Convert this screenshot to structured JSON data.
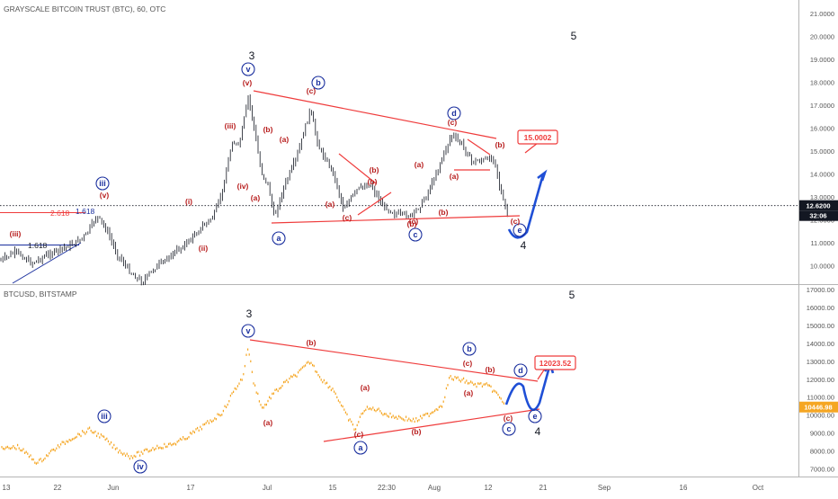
{
  "colors": {
    "candle": "#131722",
    "line2": "#f5a623",
    "trend": "#ef3b3b",
    "wave_red": "#b71c1c",
    "wave_blue": "#1a2f9e",
    "projection": "#1f4fd6",
    "axis_text": "#555555",
    "grid": "#c7c7c7",
    "price_tag": "#131722",
    "price_tag2": "#f5a623"
  },
  "chart_data": [
    {
      "type": "candlestick",
      "title": "GRAYSCALE BITCOIN TRUST (BTC), 60, OTC",
      "axis_labels": [
        "21.0000",
        "20.0000",
        "19.0000",
        "18.0000",
        "17.0000",
        "16.0000",
        "15.0000",
        "14.0000",
        "13.0000",
        "12.0000",
        "11.0000",
        "10.0000"
      ],
      "y_ticks": [
        21,
        20,
        19,
        18,
        17,
        16,
        15,
        14,
        13,
        12,
        11,
        10
      ],
      "ylim": [
        9.4,
        21.5
      ],
      "current_price": "12.6200",
      "countdown": "32:06",
      "current_value": 12.62,
      "target_box": "15.0002",
      "fib_labels": {
        "a": "2.618",
        "b": "1.618",
        "c": "1.618"
      },
      "waves": [
        {
          "t": "3",
          "c": "k"
        },
        {
          "t": "5",
          "c": "k"
        },
        {
          "t": "4",
          "c": "k"
        },
        {
          "t": "v",
          "c": "bc"
        },
        {
          "t": "b",
          "c": "bc"
        },
        {
          "t": "d",
          "c": "bc"
        },
        {
          "t": "iii",
          "c": "bc"
        },
        {
          "t": "a",
          "c": "bc"
        },
        {
          "t": "c",
          "c": "bc"
        },
        {
          "t": "e",
          "c": "bc"
        },
        {
          "t": "(v)",
          "c": "r"
        },
        {
          "t": "(c)",
          "c": "r"
        },
        {
          "t": "(iii)",
          "c": "r"
        },
        {
          "t": "(b)",
          "c": "r"
        },
        {
          "t": "(a)",
          "c": "r"
        },
        {
          "t": "(c)",
          "c": "r"
        },
        {
          "t": "(b)",
          "c": "r"
        },
        {
          "t": "(i)",
          "c": "r"
        },
        {
          "t": "(iv)",
          "c": "r"
        },
        {
          "t": "(a)",
          "c": "r"
        },
        {
          "t": "(b)",
          "c": "r"
        },
        {
          "t": "(a)",
          "c": "r"
        },
        {
          "t": "(c)",
          "c": "r"
        },
        {
          "t": "(b)",
          "c": "r"
        },
        {
          "t": "(a)",
          "c": "r"
        },
        {
          "t": "(b)",
          "c": "r"
        },
        {
          "t": "(c)",
          "c": "r"
        },
        {
          "t": "(a)",
          "c": "r"
        },
        {
          "t": "(ii)",
          "c": "r"
        },
        {
          "t": "(iii)",
          "c": "r"
        },
        {
          "t": "(v)",
          "c": "r"
        },
        {
          "t": "(b)",
          "c": "r"
        },
        {
          "t": "(c)",
          "c": "r"
        }
      ]
    },
    {
      "type": "line",
      "title": "BTCUSD, BITSTAMP",
      "axis_labels": [
        "17000.00",
        "16000.00",
        "15000.00",
        "14000.00",
        "13000.00",
        "12000.00",
        "11000.00",
        "10000.00",
        "9000.00",
        "8000.00",
        "7000.00"
      ],
      "y_ticks": [
        17000,
        16000,
        15000,
        14000,
        13000,
        12000,
        11000,
        10000,
        9000,
        8000,
        7000
      ],
      "ylim": [
        6500,
        17400
      ],
      "current_price": "10446.98",
      "current_value": 10446.98,
      "target_box": "12023.52",
      "waves": [
        {
          "t": "3",
          "c": "k"
        },
        {
          "t": "5",
          "c": "k"
        },
        {
          "t": "4",
          "c": "k"
        },
        {
          "t": "v",
          "c": "bc"
        },
        {
          "t": "b",
          "c": "bc"
        },
        {
          "t": "d",
          "c": "bc"
        },
        {
          "t": "iii",
          "c": "bc"
        },
        {
          "t": "iv",
          "c": "bc"
        },
        {
          "t": "a",
          "c": "bc"
        },
        {
          "t": "c",
          "c": "bc"
        },
        {
          "t": "e",
          "c": "bc"
        },
        {
          "t": "(b)",
          "c": "r"
        },
        {
          "t": "(c)",
          "c": "r"
        },
        {
          "t": "(b)",
          "c": "r"
        },
        {
          "t": "(a)",
          "c": "r"
        },
        {
          "t": "(a)",
          "c": "r"
        },
        {
          "t": "(a)",
          "c": "r"
        },
        {
          "t": "(c)",
          "c": "r"
        },
        {
          "t": "(b)",
          "c": "r"
        },
        {
          "t": "(c)",
          "c": "r"
        }
      ]
    }
  ],
  "x_axis": {
    "labels": [
      "13",
      "22",
      "Jun",
      "17",
      "Jul",
      "15",
      "22:30",
      "Aug",
      "12",
      "21",
      "Sep",
      "16",
      "Oct"
    ]
  }
}
